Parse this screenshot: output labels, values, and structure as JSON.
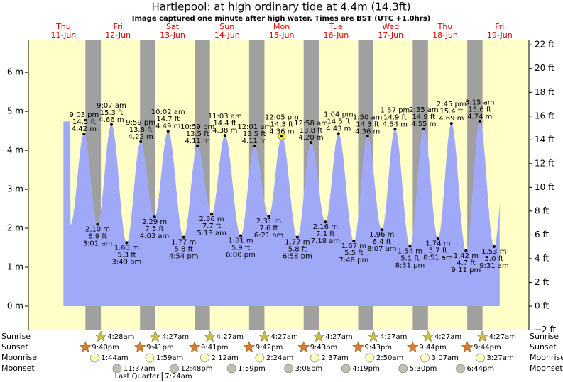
{
  "chart_data": {
    "type": "tide",
    "title": "Hartlepool: at high  ordinary tide at 4.4m (14.3ft)",
    "subtitle": "Image captured one minute after high water. Times are BST (UTC +1.0hrs)",
    "days": [
      {
        "name": "Thu",
        "date": "11-Jun"
      },
      {
        "name": "Fri",
        "date": "12-Jun"
      },
      {
        "name": "Sat",
        "date": "13-Jun"
      },
      {
        "name": "Sun",
        "date": "14-Jun"
      },
      {
        "name": "Mon",
        "date": "15-Jun"
      },
      {
        "name": "Tue",
        "date": "16-Jun"
      },
      {
        "name": "Wed",
        "date": "17-Jun"
      },
      {
        "name": "Thu",
        "date": "18-Jun"
      },
      {
        "name": "Fri",
        "date": "19-Jun"
      }
    ],
    "ylim": [
      -0.6,
      6.82
    ],
    "yticks": [
      {
        "value": 0,
        "label": "0 m"
      },
      {
        "value": 1,
        "label": "1 m"
      },
      {
        "value": 2,
        "label": "2 m"
      },
      {
        "value": 3,
        "label": "3 m"
      },
      {
        "value": 4,
        "label": "4 m"
      },
      {
        "value": 5,
        "label": "5 m"
      },
      {
        "value": 6,
        "label": "6 m"
      }
    ],
    "y2lim": [
      -1.97,
      22.37
    ],
    "y2ticks": [
      {
        "value": -2,
        "label": "−2 ft"
      },
      {
        "value": 0,
        "label": "0 ft"
      },
      {
        "value": 2,
        "label": "2 ft"
      },
      {
        "value": 4,
        "label": "4 ft"
      },
      {
        "value": 6,
        "label": "6 ft"
      },
      {
        "value": 8,
        "label": "8 ft"
      },
      {
        "value": 10,
        "label": "10 ft"
      },
      {
        "value": 12,
        "label": "12 ft"
      },
      {
        "value": 14,
        "label": "14 ft"
      },
      {
        "value": 16,
        "label": "16 ft"
      },
      {
        "value": 18,
        "label": "18 ft"
      },
      {
        "value": 20,
        "label": "20 ft"
      },
      {
        "value": 22,
        "label": "22 ft"
      }
    ],
    "water_color": "#a0a8f8",
    "night_color": "#a0a0a0",
    "day_color": "#ffffc8",
    "captured_index": 14,
    "extremes": [
      {
        "kind": "high",
        "date": "11-Jun",
        "time": "9:03 pm",
        "height": 4.42,
        "height_label": "4.42 m",
        "feet_label": "14.5 ft"
      },
      {
        "kind": "low",
        "date": "12-Jun",
        "time": "3:01 am",
        "height": 2.1,
        "height_label": "2.10 m",
        "feet_label": "6.9 ft"
      },
      {
        "kind": "high",
        "date": "12-Jun",
        "time": "9:07 am",
        "height": 4.66,
        "height_label": "4.66 m",
        "feet_label": "15.3 ft"
      },
      {
        "kind": "low",
        "date": "12-Jun",
        "time": "3:49 pm",
        "height": 1.63,
        "height_label": "1.63 m",
        "feet_label": "5.3 ft"
      },
      {
        "kind": "high",
        "date": "12-Jun",
        "time": "9:59 pm",
        "height": 4.22,
        "height_label": "4.22 m",
        "feet_label": "13.8 ft"
      },
      {
        "kind": "low",
        "date": "13-Jun",
        "time": "4:03 am",
        "height": 2.29,
        "height_label": "2.29 m",
        "feet_label": "7.5 ft"
      },
      {
        "kind": "high",
        "date": "13-Jun",
        "time": "10:02 am",
        "height": 4.49,
        "height_label": "4.49 m",
        "feet_label": "14.7 ft"
      },
      {
        "kind": "low",
        "date": "13-Jun",
        "time": "4:54 pm",
        "height": 1.77,
        "height_label": "1.77 m",
        "feet_label": "5.8 ft"
      },
      {
        "kind": "high",
        "date": "13-Jun",
        "time": "10:59 pm",
        "height": 4.11,
        "height_label": "4.11 m",
        "feet_label": "13.5 ft"
      },
      {
        "kind": "low",
        "date": "14-Jun",
        "time": "5:13 am",
        "height": 2.36,
        "height_label": "2.36 m",
        "feet_label": "7.7 ft"
      },
      {
        "kind": "high",
        "date": "14-Jun",
        "time": "11:03 am",
        "height": 4.38,
        "height_label": "4.38 m",
        "feet_label": "14.4 ft"
      },
      {
        "kind": "low",
        "date": "14-Jun",
        "time": "6:00 pm",
        "height": 1.81,
        "height_label": "1.81 m",
        "feet_label": "5.9 ft"
      },
      {
        "kind": "high",
        "date": "15-Jun",
        "time": "12:01 am",
        "height": 4.11,
        "height_label": "4.11 m",
        "feet_label": "13.5 ft"
      },
      {
        "kind": "low",
        "date": "15-Jun",
        "time": "6:21 am",
        "height": 2.31,
        "height_label": "2.31 m",
        "feet_label": "7.6 ft"
      },
      {
        "kind": "high",
        "date": "15-Jun",
        "time": "12:05 pm",
        "height": 4.36,
        "height_label": "4.36 m",
        "feet_label": "14.3 ft"
      },
      {
        "kind": "low",
        "date": "15-Jun",
        "time": "6:58 pm",
        "height": 1.77,
        "height_label": "1.77 m",
        "feet_label": "5.8 ft"
      },
      {
        "kind": "high",
        "date": "16-Jun",
        "time": "12:58 am",
        "height": 4.2,
        "height_label": "4.20 m",
        "feet_label": "13.8 ft"
      },
      {
        "kind": "low",
        "date": "16-Jun",
        "time": "7:18 am",
        "height": 2.16,
        "height_label": "2.16 m",
        "feet_label": "7.1 ft"
      },
      {
        "kind": "high",
        "date": "16-Jun",
        "time": "1:04 pm",
        "height": 4.43,
        "height_label": "4.43 m",
        "feet_label": "14.5 ft"
      },
      {
        "kind": "low",
        "date": "16-Jun",
        "time": "7:48 pm",
        "height": 1.67,
        "height_label": "1.67 m",
        "feet_label": "5.5 ft"
      },
      {
        "kind": "high",
        "date": "17-Jun",
        "time": "1:50 am",
        "height": 4.36,
        "height_label": "4.36 m",
        "feet_label": "14.3 ft"
      },
      {
        "kind": "low",
        "date": "17-Jun",
        "time": "8:07 am",
        "height": 1.96,
        "height_label": "1.96 m",
        "feet_label": "6.4 ft"
      },
      {
        "kind": "high",
        "date": "17-Jun",
        "time": "1:57 pm",
        "height": 4.54,
        "height_label": "4.54 m",
        "feet_label": "14.9 ft"
      },
      {
        "kind": "low",
        "date": "17-Jun",
        "time": "8:31 pm",
        "height": 1.54,
        "height_label": "1.54 m",
        "feet_label": "5.1 ft"
      },
      {
        "kind": "high",
        "date": "18-Jun",
        "time": "2:35 am",
        "height": 4.55,
        "height_label": "4.55 m",
        "feet_label": "14.9 ft"
      },
      {
        "kind": "low",
        "date": "18-Jun",
        "time": "8:51 am",
        "height": 1.74,
        "height_label": "1.74 m",
        "feet_label": "5.7 ft"
      },
      {
        "kind": "high",
        "date": "18-Jun",
        "time": "2:45 pm",
        "height": 4.69,
        "height_label": "4.69 m",
        "feet_label": "15.4 ft"
      },
      {
        "kind": "low",
        "date": "18-Jun",
        "time": "9:11 pm",
        "height": 1.42,
        "height_label": "1.42 m",
        "feet_label": "4.7 ft"
      },
      {
        "kind": "high",
        "date": "19-Jun",
        "time": "3:15 am",
        "height": 4.74,
        "height_label": "4.74 m",
        "feet_label": "15.6 ft"
      },
      {
        "kind": "low",
        "date": "19-Jun",
        "time": "9:31 am",
        "height": 1.53,
        "height_label": "1.53 m",
        "feet_label": "5.0 ft"
      }
    ],
    "rows": [
      {
        "label": "Sunrise",
        "icon": "sunrise",
        "events": [
          {
            "date": "12-Jun",
            "time": "4:28am"
          },
          {
            "date": "13-Jun",
            "time": "4:27am"
          },
          {
            "date": "14-Jun",
            "time": "4:27am"
          },
          {
            "date": "15-Jun",
            "time": "4:27am"
          },
          {
            "date": "16-Jun",
            "time": "4:27am"
          },
          {
            "date": "17-Jun",
            "time": "4:27am"
          },
          {
            "date": "18-Jun",
            "time": "4:27am"
          },
          {
            "date": "19-Jun",
            "time": "4:27am"
          }
        ]
      },
      {
        "label": "Sunset",
        "icon": "sunset",
        "events": [
          {
            "date": "11-Jun",
            "time": "9:40pm"
          },
          {
            "date": "12-Jun",
            "time": "9:41pm"
          },
          {
            "date": "13-Jun",
            "time": "9:41pm"
          },
          {
            "date": "14-Jun",
            "time": "9:42pm"
          },
          {
            "date": "15-Jun",
            "time": "9:43pm"
          },
          {
            "date": "16-Jun",
            "time": "9:43pm"
          },
          {
            "date": "17-Jun",
            "time": "9:44pm"
          },
          {
            "date": "18-Jun",
            "time": "9:44pm"
          }
        ]
      },
      {
        "label": "Moonrise",
        "icon": "moonrise",
        "events": [
          {
            "date": "12-Jun",
            "time": "1:44am"
          },
          {
            "date": "13-Jun",
            "time": "1:59am"
          },
          {
            "date": "14-Jun",
            "time": "2:12am"
          },
          {
            "date": "15-Jun",
            "time": "2:24am"
          },
          {
            "date": "16-Jun",
            "time": "2:37am"
          },
          {
            "date": "17-Jun",
            "time": "2:50am"
          },
          {
            "date": "18-Jun",
            "time": "3:07am"
          },
          {
            "date": "19-Jun",
            "time": "3:27am"
          }
        ]
      },
      {
        "label": "Moonset",
        "icon": "moonset",
        "events": [
          {
            "date": "12-Jun",
            "time": "11:37am"
          },
          {
            "date": "13-Jun",
            "time": "12:48pm"
          },
          {
            "date": "14-Jun",
            "time": "1:59pm"
          },
          {
            "date": "15-Jun",
            "time": "3:08pm"
          },
          {
            "date": "16-Jun",
            "time": "4:19pm"
          },
          {
            "date": "17-Jun",
            "time": "5:30pm"
          },
          {
            "date": "18-Jun",
            "time": "6:44pm"
          }
        ]
      }
    ],
    "moon_phase": {
      "label": "Last Quarter",
      "date": "13-Jun",
      "time": "7:24am"
    }
  }
}
